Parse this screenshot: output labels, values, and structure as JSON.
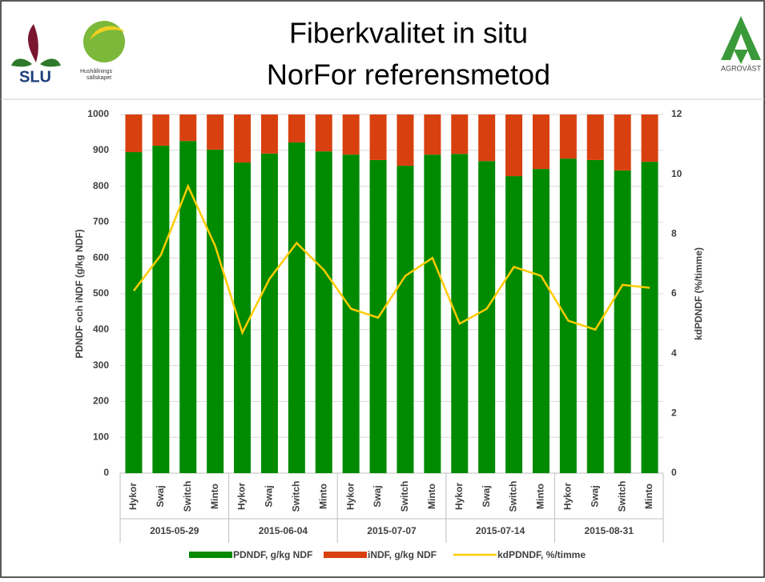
{
  "header": {
    "title_lines": [
      "Fiberkvalitet in situ",
      "NorFor referensmetod"
    ],
    "logos": {
      "slu": "SLU",
      "hushallning": [
        "Hushållnings",
        "sällskapet"
      ],
      "agrovast": "AGROVÄST"
    }
  },
  "chart_data": {
    "type": "bar",
    "stacked": true,
    "categories": [
      "Hykor",
      "Swaj",
      "Switch",
      "Minto",
      "Hykor",
      "Swaj",
      "Switch",
      "Minto",
      "Hykor",
      "Swaj",
      "Switch",
      "Minto",
      "Hykor",
      "Swaj",
      "Switch",
      "Minto",
      "Hykor",
      "Swaj",
      "Switch",
      "Minto"
    ],
    "groups": [
      "2015-05-29",
      "2015-06-04",
      "2015-07-07",
      "2015-07-14",
      "2015-08-31"
    ],
    "series": [
      {
        "name": "PDNDF, g/kg NDF",
        "color": "#008a00",
        "values": [
          895,
          913,
          926,
          902,
          866,
          891,
          922,
          897,
          888,
          873,
          857,
          888,
          890,
          870,
          828,
          848,
          877,
          873,
          844,
          868
        ]
      },
      {
        "name": "iNDF, g/kg NDF",
        "color": "#d8410f",
        "values": [
          105,
          87,
          74,
          98,
          134,
          109,
          78,
          103,
          112,
          127,
          143,
          112,
          110,
          130,
          172,
          152,
          123,
          127,
          156,
          132
        ]
      },
      {
        "name": "kdPDNDF, %/timme",
        "color": "#ffcc00",
        "type": "line",
        "axis": "y2",
        "values": [
          6.1,
          7.3,
          9.6,
          7.6,
          4.7,
          6.5,
          7.7,
          6.8,
          5.5,
          5.2,
          6.6,
          7.2,
          5.0,
          5.5,
          6.9,
          6.6,
          5.1,
          4.8,
          6.3,
          6.2
        ]
      }
    ],
    "ylabel": "PDNDF och iNDF (g/kg NDF)",
    "y2label": "kdPDNDF (%/timme)",
    "ylim": [
      0,
      1000
    ],
    "yticks": [
      0,
      100,
      200,
      300,
      400,
      500,
      600,
      700,
      800,
      900,
      1000
    ],
    "y2lim": [
      0,
      12
    ],
    "y2ticks": [
      0,
      2,
      4,
      6,
      8,
      10,
      12
    ],
    "grid": true,
    "legend": "bottom"
  }
}
